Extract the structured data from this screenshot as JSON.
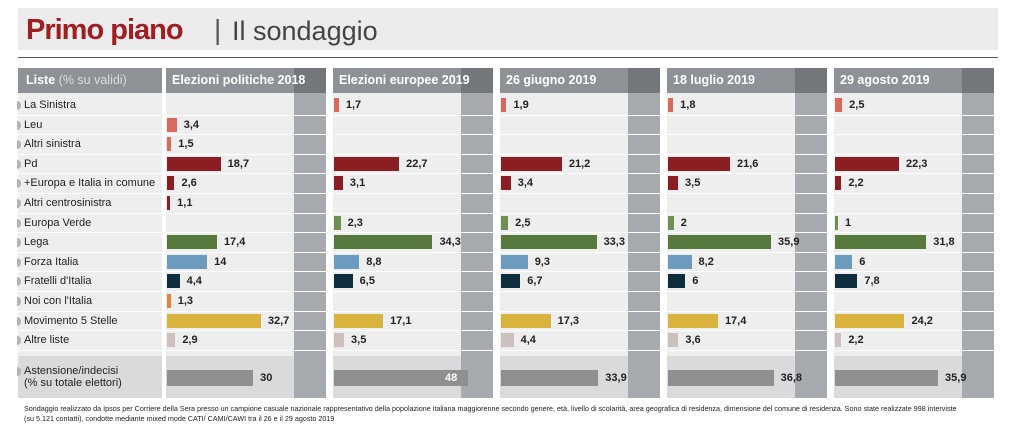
{
  "header": {
    "title_main": "Primo piano",
    "title_separator": "|",
    "title_sub": "Il sondaggio"
  },
  "chart_data": {
    "type": "bar",
    "orientation": "horizontal",
    "title": "Primo piano | Il sondaggio",
    "row_header_bold": "Liste",
    "row_header_sub": "(% su validi)",
    "categories": [
      "La Sinistra",
      "Leu",
      "Altri sinistra",
      "Pd",
      "+Europa e Italia in comune",
      "Altri centrosinistra",
      "Europa Verde",
      "Lega",
      "Forza Italia",
      "Fratelli d'Italia",
      "Noi con l'Italia",
      "Movimento 5 Stelle",
      "Altre liste"
    ],
    "category_colors": [
      "#d9695a",
      "#d9695a",
      "#d9695a",
      "#8b1e22",
      "#8b1e22",
      "#8b1e22",
      "#6f8f55",
      "#577a3c",
      "#6b9cc0",
      "#0e2e3e",
      "#e8843a",
      "#d8b43e",
      "#cfc0c0"
    ],
    "series": [
      {
        "name": "Elezioni politiche 2018",
        "values": [
          null,
          3.4,
          1.5,
          18.7,
          2.6,
          1.1,
          null,
          17.4,
          14,
          4.4,
          1.3,
          32.7,
          2.9
        ],
        "labels": [
          "",
          "3,4",
          "1,5",
          "18,7",
          "2,6",
          "1,1",
          "",
          "17,4",
          "14",
          "4,4",
          "1,3",
          "32,7",
          "2,9"
        ],
        "astensione": 30,
        "astensione_label": "30"
      },
      {
        "name": "Elezioni europee 2019",
        "values": [
          1.7,
          null,
          null,
          22.7,
          3.1,
          null,
          2.3,
          34.3,
          8.8,
          6.5,
          null,
          17.1,
          3.5
        ],
        "labels": [
          "1,7",
          "",
          "",
          "22,7",
          "3,1",
          "",
          "2,3",
          "34,3",
          "8,8",
          "6,5",
          "",
          "17,1",
          "3,5"
        ],
        "astensione": 48,
        "astensione_label": "48"
      },
      {
        "name": "26 giugno 2019",
        "values": [
          1.9,
          null,
          null,
          21.2,
          3.4,
          null,
          2.5,
          33.3,
          9.3,
          6.7,
          null,
          17.3,
          4.4
        ],
        "labels": [
          "1,9",
          "",
          "",
          "21,2",
          "3,4",
          "",
          "2,5",
          "33,3",
          "9,3",
          "6,7",
          "",
          "17,3",
          "4,4"
        ],
        "astensione": 33.9,
        "astensione_label": "33,9"
      },
      {
        "name": "18 luglio 2019",
        "values": [
          1.8,
          null,
          null,
          21.6,
          3.5,
          null,
          2,
          35.9,
          8.2,
          6,
          null,
          17.4,
          3.6
        ],
        "labels": [
          "1,8",
          "",
          "",
          "21,6",
          "3,5",
          "",
          "2",
          "35,9",
          "8,2",
          "6",
          "",
          "17,4",
          "3,6"
        ],
        "astensione": 36.8,
        "astensione_label": "36,8"
      },
      {
        "name": "29 agosto 2019",
        "values": [
          2.5,
          null,
          null,
          22.3,
          2.2,
          null,
          1,
          31.8,
          6,
          7.8,
          null,
          24.2,
          2.2
        ],
        "labels": [
          "2,5",
          "",
          "",
          "22,3",
          "2,2",
          "",
          "1",
          "31,8",
          "6",
          "7,8",
          "",
          "24,2",
          "2,2"
        ],
        "astensione": 35.9,
        "astensione_label": "35,9"
      }
    ],
    "astensione_row": {
      "label_line1": "Astensione/indecisi",
      "label_line2": "(% su totale elettori)",
      "color": "#8f8f8f"
    },
    "xlim": [
      0,
      50
    ],
    "grid": false,
    "legend": "none"
  },
  "footer": {
    "line1": "Sondaggio realizzato da Ipsos per Corriere della Sera presso un campione casuale nazionale rappresentativo della popolazione italiana maggiorenne secondo genere, età, livello di scolarità, area geografica di residenza, dimensione del comune di residenza. Sono state realizzate 998 interviste",
    "line2": "(su 5.121 contatti), condotte mediante mixed mode CATI/ CAMI/CAWI tra il 26 e il 29 agosto 2019"
  }
}
